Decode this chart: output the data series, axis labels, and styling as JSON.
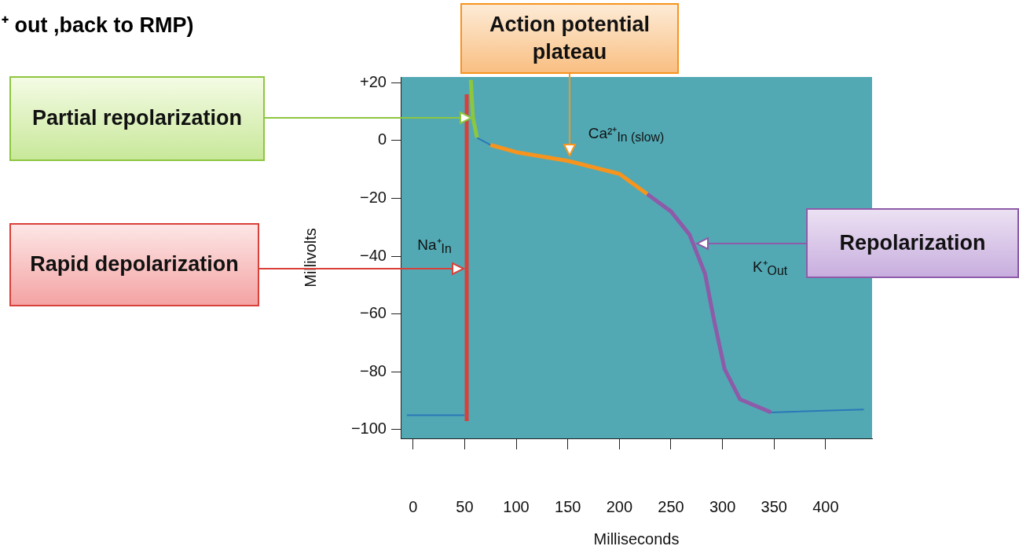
{
  "chart_data": {
    "type": "line",
    "xlabel": "Milliseconds",
    "ylabel": "Millivolts",
    "xlim": [
      -12,
      445
    ],
    "ylim": [
      -103,
      22
    ],
    "xticks": [
      0,
      50,
      100,
      150,
      200,
      250,
      300,
      350,
      400
    ],
    "yticks": [
      {
        "value": -100,
        "label": "−100"
      },
      {
        "value": -80,
        "label": "−80"
      },
      {
        "value": -60,
        "label": "−60"
      },
      {
        "value": -40,
        "label": "−40"
      },
      {
        "value": -20,
        "label": "−20"
      },
      0,
      {
        "value": 20,
        "label": "+20"
      }
    ],
    "grid": false,
    "legend": false,
    "marker": "none",
    "line_style": "solid",
    "series": [
      {
        "color": "#2b78b8",
        "x": [
          -6,
          50,
          51,
          62,
          75,
          76,
          347,
          437
        ],
        "values": [
          -95,
          -95,
          null,
          1,
          -1.5,
          null,
          -94,
          -93
        ]
      },
      {
        "color": "#d9403a",
        "x": [
          52,
          52
        ],
        "values": [
          -97,
          16
        ]
      },
      {
        "color": "#8dc63f",
        "x": [
          56,
          58,
          62
        ],
        "values": [
          21,
          8,
          1
        ]
      },
      {
        "color": "#f7941d",
        "x": [
          75,
          100,
          150,
          200,
          227
        ],
        "values": [
          -1.5,
          -4,
          -7,
          -11.5,
          -18.5
        ]
      },
      {
        "color": "#8e5ba8",
        "x": [
          227,
          250,
          268,
          273,
          283,
          292,
          302,
          317,
          347
        ],
        "values": [
          -18.5,
          -24.5,
          -32.5,
          -37,
          -46,
          -62.5,
          -79,
          -89.5,
          -94
        ]
      }
    ],
    "annotations": [
      "⁺ out ,back to RMP)",
      "Partial repolarization",
      "Rapid depolarization",
      "Action potential plateau",
      "Repolarization",
      "Na⁺$_{In}$",
      "Ca²⁺$_{In (slow)}$",
      "K⁺$_{Out}$"
    ]
  }
}
